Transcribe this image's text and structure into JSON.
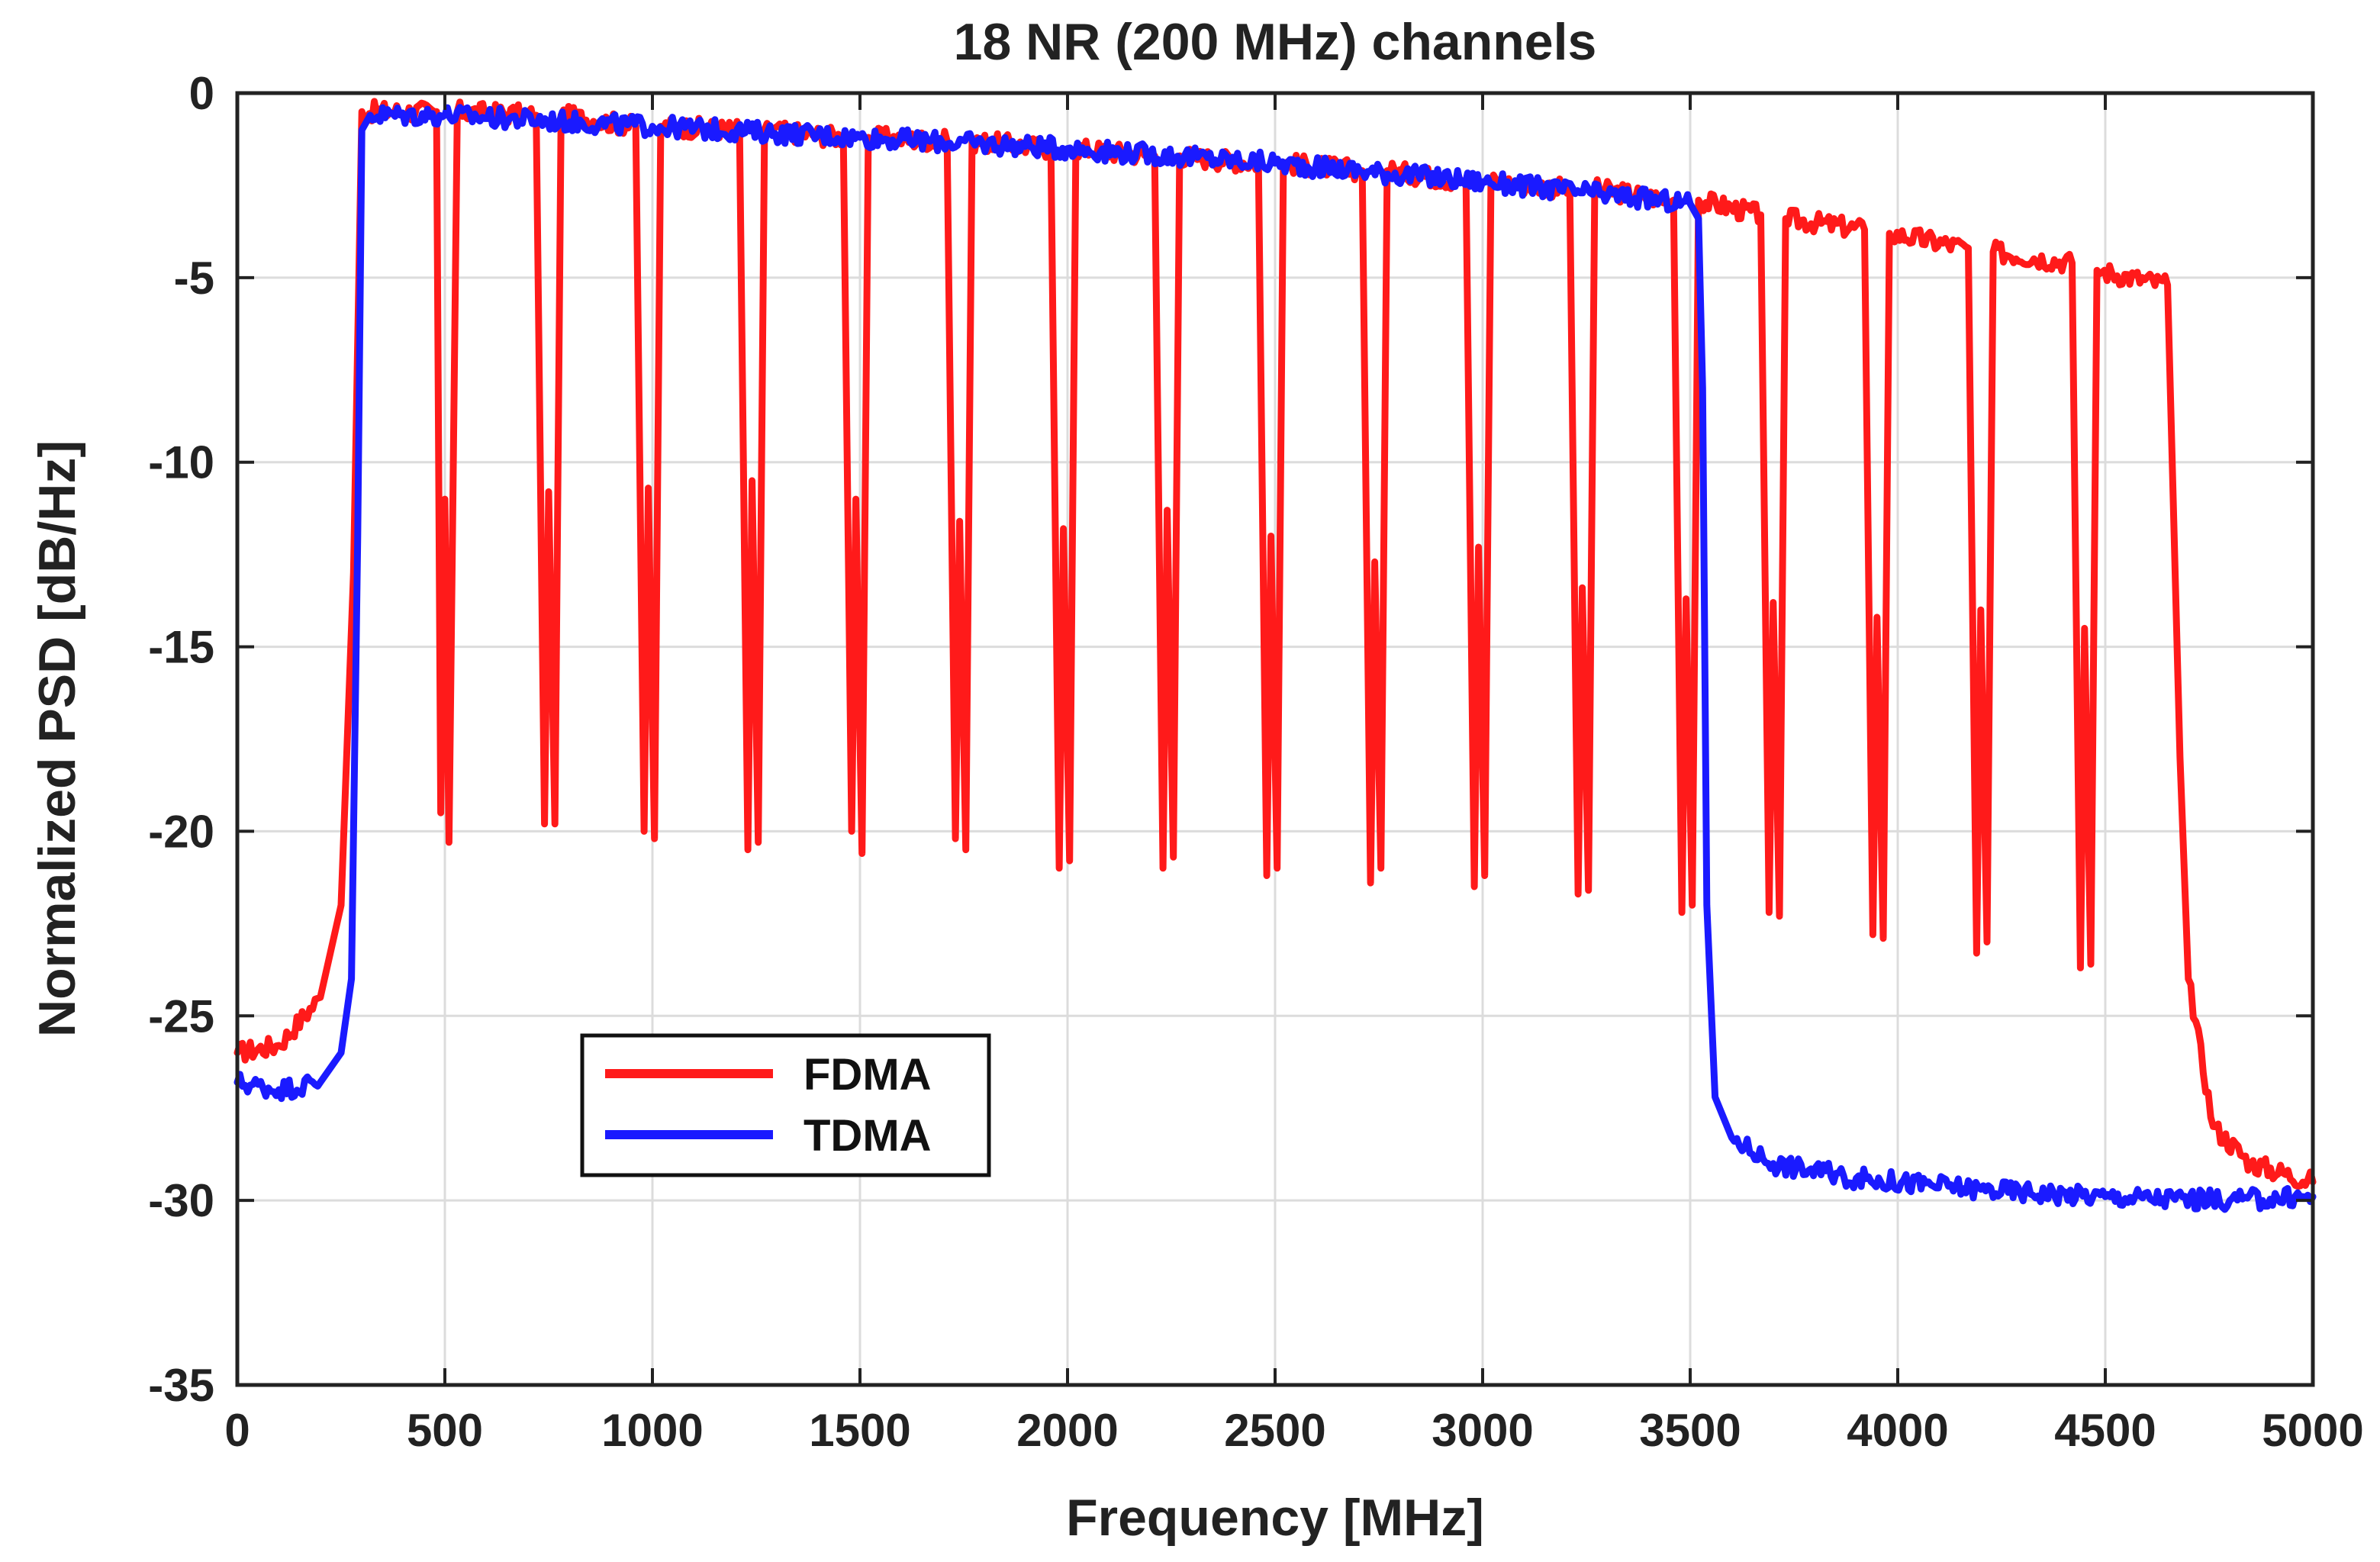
{
  "chart_data": {
    "type": "line",
    "title": "18 NR (200 MHz) channels",
    "xlabel": "Frequency [MHz]",
    "ylabel": "Normalized PSD [dB/Hz]",
    "xlim": [
      0,
      5000
    ],
    "ylim": [
      -35,
      0
    ],
    "x_ticks": [
      0,
      500,
      1000,
      1500,
      2000,
      2500,
      3000,
      3500,
      4000,
      4500,
      5000
    ],
    "y_ticks": [
      0,
      -5,
      -10,
      -15,
      -20,
      -25,
      -30,
      -35
    ],
    "x_tick_labels": [
      "0",
      "500",
      "1000",
      "1500",
      "2000",
      "2500",
      "3000",
      "3500",
      "4000",
      "4500",
      "5000"
    ],
    "y_tick_labels": [
      "0",
      "-5",
      "-10",
      "-15",
      "-20",
      "-25",
      "-30",
      "-35"
    ],
    "grid": true,
    "legend_position": "lower-left",
    "series": [
      {
        "name": "FDMA",
        "color": "#ff1a1a",
        "x": [
          0,
          100,
          200,
          250,
          280,
          300,
          480,
          490,
          500,
          510,
          530,
          720,
          740,
          750,
          765,
          780,
          960,
          980,
          990,
          1005,
          1020,
          1210,
          1230,
          1240,
          1255,
          1270,
          1460,
          1480,
          1490,
          1505,
          1520,
          1710,
          1730,
          1740,
          1755,
          1770,
          1960,
          1980,
          1990,
          2005,
          2020,
          2210,
          2230,
          2240,
          2255,
          2270,
          2460,
          2480,
          2490,
          2505,
          2520,
          2710,
          2730,
          2740,
          2755,
          2770,
          2960,
          2980,
          2990,
          3005,
          3020,
          3210,
          3230,
          3240,
          3255,
          3270,
          3460,
          3480,
          3490,
          3505,
          3520,
          3670,
          3690,
          3700,
          3715,
          3730,
          3920,
          3940,
          3950,
          3965,
          3980,
          4170,
          4190,
          4200,
          4215,
          4230,
          4420,
          4440,
          4450,
          4465,
          4480,
          4650,
          4680,
          4700,
          4760,
          4850,
          5000
        ],
        "y": [
          -26.0,
          -25.8,
          -24.5,
          -22.0,
          -13.0,
          -0.5,
          -0.5,
          -19.5,
          -11.0,
          -20.3,
          -0.5,
          -0.6,
          -19.8,
          -10.8,
          -19.8,
          -0.6,
          -0.9,
          -20.0,
          -10.7,
          -20.2,
          -0.9,
          -1.0,
          -20.5,
          -10.5,
          -20.3,
          -1.0,
          -1.2,
          -20.0,
          -11.0,
          -20.6,
          -1.2,
          -1.3,
          -20.2,
          -11.6,
          -20.5,
          -1.3,
          -1.5,
          -21.0,
          -11.8,
          -20.8,
          -1.5,
          -1.7,
          -21.0,
          -11.3,
          -20.7,
          -1.7,
          -1.9,
          -21.2,
          -12.0,
          -21.0,
          -1.9,
          -2.1,
          -21.4,
          -12.7,
          -21.0,
          -2.1,
          -2.4,
          -21.5,
          -12.3,
          -21.2,
          -2.4,
          -2.6,
          -21.7,
          -13.4,
          -21.6,
          -2.6,
          -2.9,
          -22.2,
          -13.7,
          -22.0,
          -2.9,
          -3.3,
          -22.2,
          -13.8,
          -22.3,
          -3.4,
          -3.7,
          -22.8,
          -14.2,
          -22.9,
          -3.8,
          -4.2,
          -23.3,
          -14.0,
          -23.0,
          -4.3,
          -4.6,
          -23.7,
          -14.5,
          -23.6,
          -4.8,
          -5.2,
          -18.0,
          -24.0,
          -28.0,
          -29.0,
          -29.5
        ]
      },
      {
        "name": "TDMA",
        "color": "#1a1aff",
        "x": [
          0,
          100,
          200,
          250,
          275,
          290,
          300,
          320,
          500,
          1000,
          1500,
          2000,
          2500,
          3000,
          3500,
          3520,
          3530,
          3540,
          3560,
          3600,
          3700,
          3900,
          4200,
          4500,
          4800,
          5000
        ],
        "y": [
          -26.8,
          -27.0,
          -26.8,
          -26.0,
          -24.0,
          -12.0,
          -1.0,
          -0.6,
          -0.6,
          -0.9,
          -1.2,
          -1.5,
          -1.9,
          -2.4,
          -3.0,
          -3.4,
          -8.0,
          -22.0,
          -27.2,
          -28.3,
          -29.0,
          -29.4,
          -29.7,
          -29.9,
          -30.0,
          -29.9
        ]
      }
    ]
  }
}
